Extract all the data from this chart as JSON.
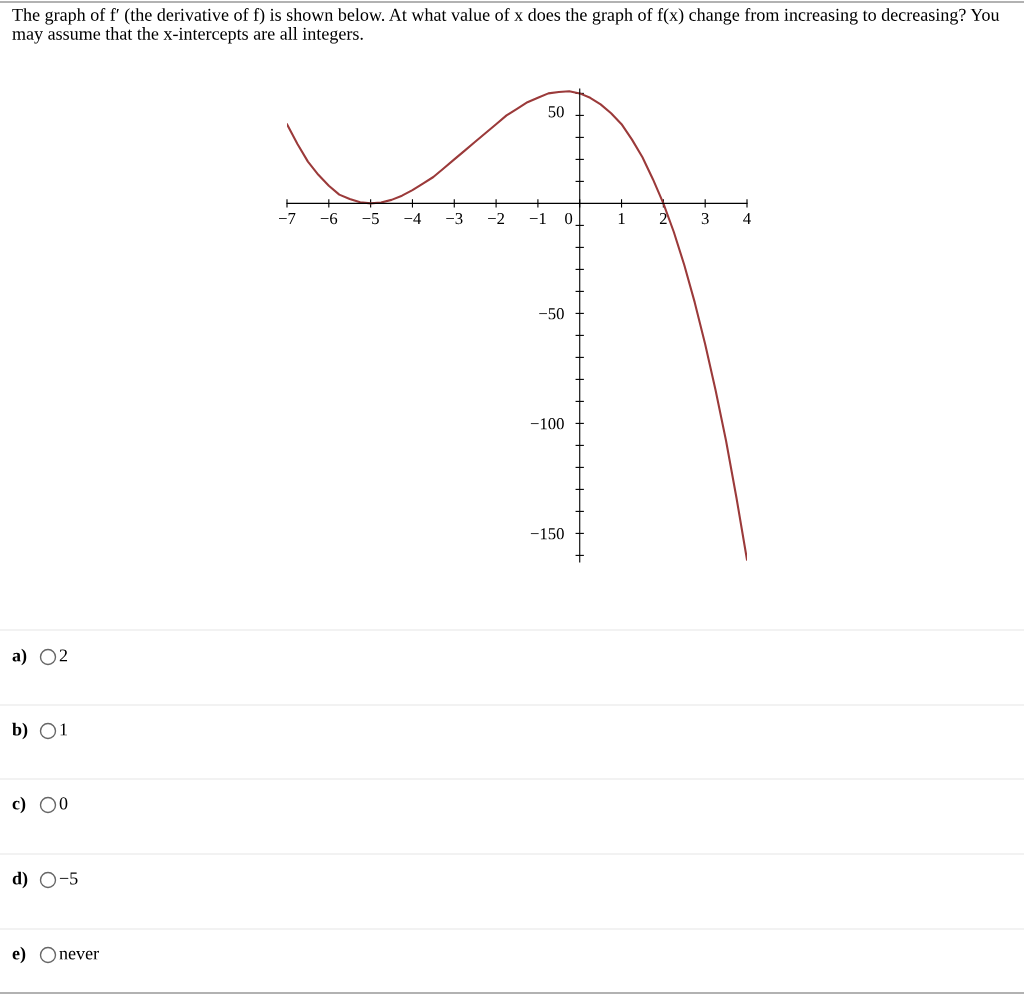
{
  "chart_data": {
    "type": "line",
    "title": "The graph of f′ (the derivative of f) is shown below. At what value of x does the graph of f(x) change from increasing to decreasing? You may assume that the x-intercepts are all integers.",
    "x": [
      -7,
      -6.75,
      -6.5,
      -6.25,
      -6,
      -5.75,
      -5.5,
      -5.25,
      -5,
      -4.75,
      -4.5,
      -4.25,
      -4,
      -3.75,
      -3.5,
      -3.25,
      -3,
      -2.75,
      -2.5,
      -2.25,
      -2,
      -1.75,
      -1.5,
      -1.25,
      -1,
      -0.75,
      -0.5,
      -0.25,
      0,
      0.25,
      0.5,
      0.75,
      1,
      1.25,
      1.5,
      1.75,
      2,
      2.25,
      2.5,
      2.75,
      3,
      3.25,
      3.5,
      3.75,
      4
    ],
    "series": [
      {
        "color": "#9b3a3a",
        "values": [
          36,
          27,
          19,
          13,
          8,
          4,
          2,
          0.5,
          0,
          0.4,
          1.6,
          3.5,
          6,
          9,
          12,
          16,
          20,
          24,
          28,
          32,
          36,
          40,
          43,
          46,
          48,
          50,
          50.6,
          51,
          50,
          48,
          45,
          41,
          36,
          29,
          21,
          11,
          0,
          -13,
          -28,
          -45,
          -64,
          -85,
          -108,
          -134,
          -162
        ]
      }
    ],
    "xlim": [
      -7,
      4
    ],
    "xticks": [
      {
        "value": -7,
        "label": "−7"
      },
      {
        "value": -6,
        "label": "−6"
      },
      {
        "value": -5,
        "label": "−5"
      },
      {
        "value": -4,
        "label": "−4"
      },
      {
        "value": -3,
        "label": "−3"
      },
      {
        "value": -2,
        "label": "−2"
      },
      {
        "value": -1,
        "label": "−1"
      },
      {
        "value": 0,
        "label": "0"
      },
      1,
      2,
      3,
      4
    ],
    "ylim": [
      -163,
      52
    ],
    "yticks": [
      {
        "value": -160,
        "label": null
      },
      {
        "value": -150,
        "label": "−150"
      },
      {
        "value": -140,
        "label": null
      },
      {
        "value": -130,
        "label": null
      },
      {
        "value": -120,
        "label": null
      },
      {
        "value": -110,
        "label": null
      },
      {
        "value": -100,
        "label": "−100"
      },
      {
        "value": -90,
        "label": null
      },
      {
        "value": -80,
        "label": null
      },
      {
        "value": -70,
        "label": null
      },
      {
        "value": -60,
        "label": null
      },
      {
        "value": -50,
        "label": "−50"
      },
      {
        "value": -40,
        "label": null
      },
      {
        "value": -30,
        "label": null
      },
      {
        "value": -20,
        "label": null
      },
      {
        "value": -10,
        "label": null
      },
      {
        "value": 10,
        "label": null
      },
      {
        "value": 20,
        "label": null
      },
      {
        "value": 30,
        "label": null
      },
      {
        "value": 40,
        "label": null
      },
      50
    ],
    "grid": false,
    "legend": false,
    "annotations": [
      "a) 2",
      "b) 1",
      "c) 0",
      "d) −5",
      "e) never"
    ]
  }
}
